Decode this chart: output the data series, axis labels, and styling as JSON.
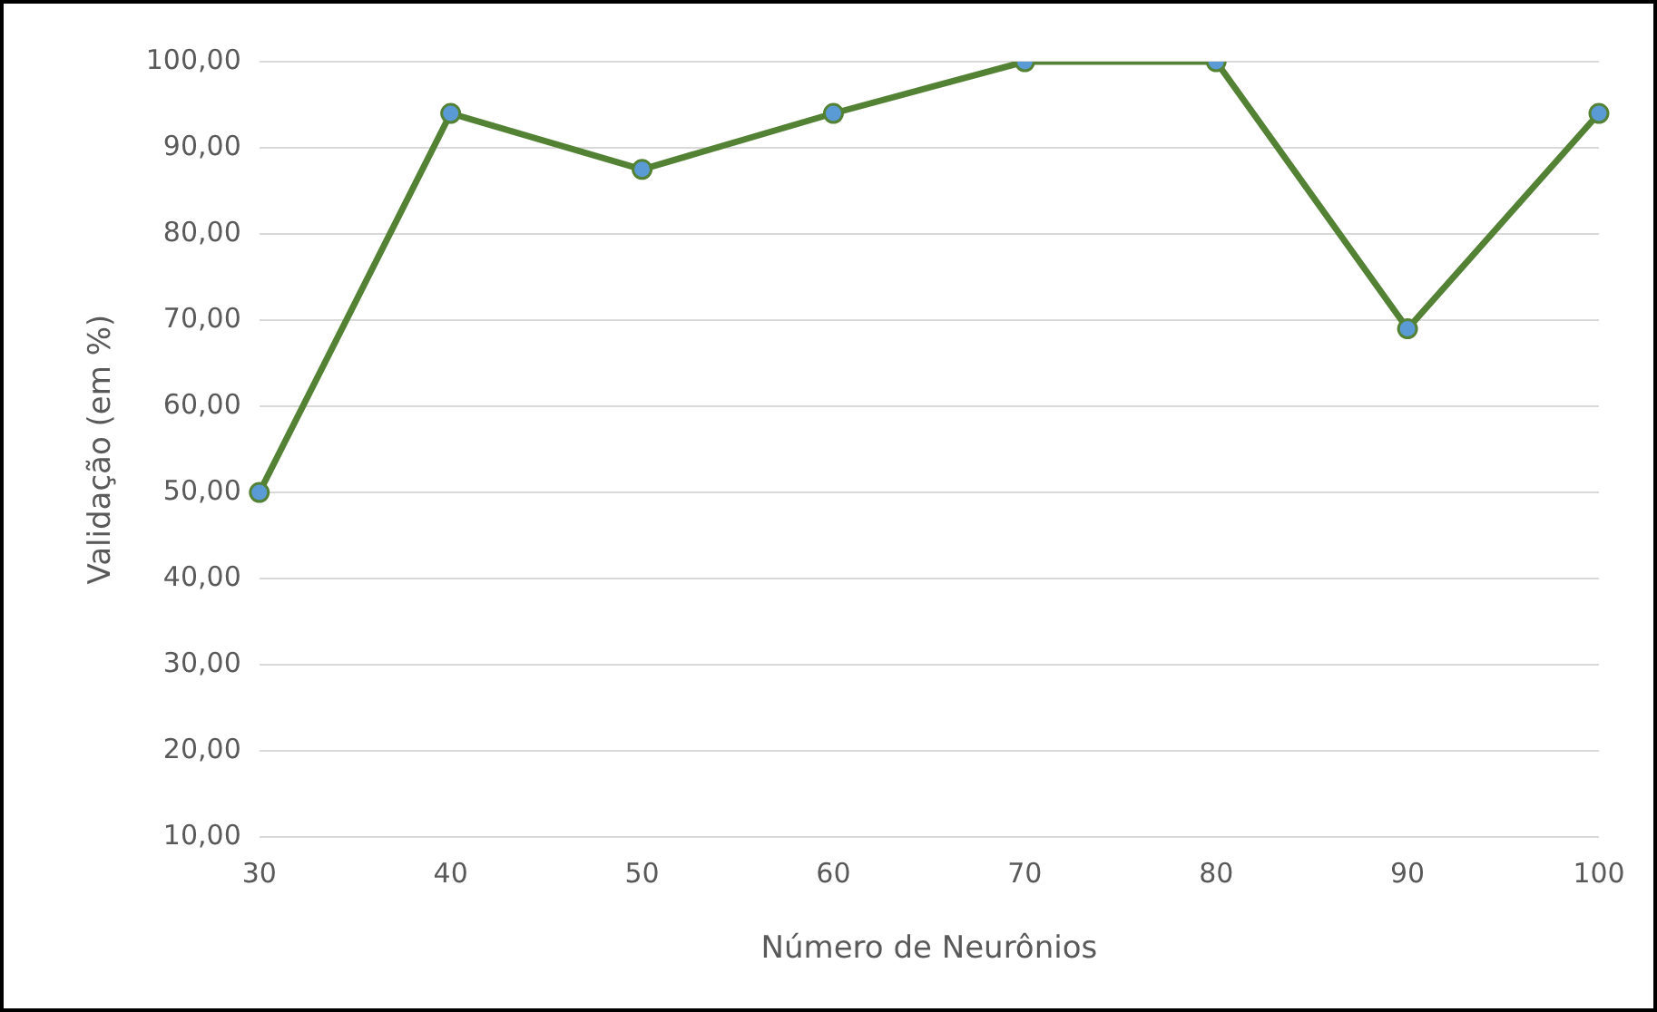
{
  "chart_data": {
    "type": "line",
    "xlabel": "Número de Neurônios",
    "ylabel": "Validação (em %)",
    "categories": [
      "30",
      "40",
      "50",
      "60",
      "70",
      "80",
      "90",
      "100"
    ],
    "series": [
      {
        "color": "#548235",
        "values": [
          50,
          94,
          87.5,
          94,
          100,
          100,
          69,
          94
        ]
      }
    ],
    "ylim": [
      10,
      100
    ],
    "yticks": [
      {
        "value": 10,
        "label": "10,00"
      },
      {
        "value": 20,
        "label": "20,00"
      },
      {
        "value": 30,
        "label": "30,00"
      },
      {
        "value": 40,
        "label": "40,00"
      },
      {
        "value": 50,
        "label": "50,00"
      },
      {
        "value": 60,
        "label": "60,00"
      },
      {
        "value": 70,
        "label": "70,00"
      },
      {
        "value": 80,
        "label": "80,00"
      },
      {
        "value": 90,
        "label": "90,00"
      },
      {
        "value": 100,
        "label": "100,00"
      }
    ],
    "grid": "y",
    "legend": false,
    "marker": "circle",
    "line_style": "solid"
  }
}
